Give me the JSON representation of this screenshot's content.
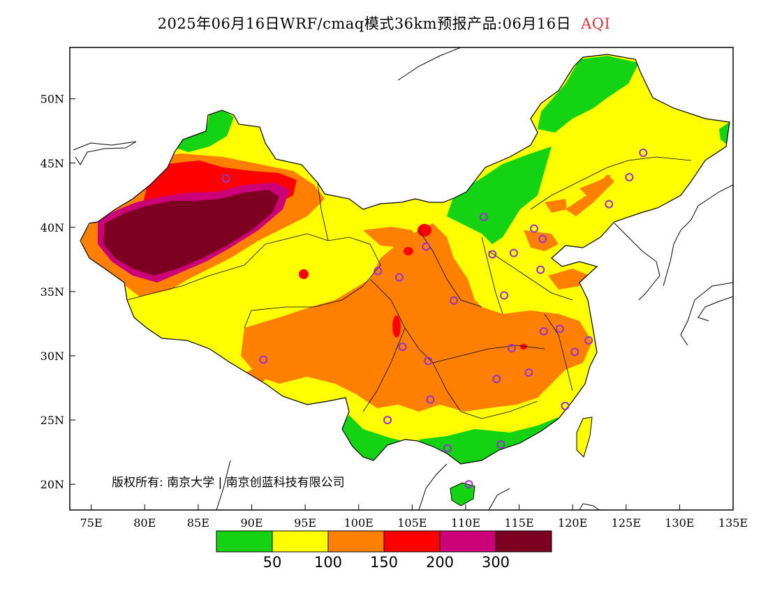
{
  "title": {
    "main": "2025年06月16日WRF/cmaq模式36km预报产品:06月16日",
    "variable": "AQI"
  },
  "map": {
    "lon_range": [
      73,
      135
    ],
    "lat_range": [
      18,
      54
    ],
    "lon_ticks": [
      "75E",
      "80E",
      "85E",
      "90E",
      "95E",
      "100E",
      "105E",
      "110E",
      "115E",
      "120E",
      "125E",
      "130E",
      "135E"
    ],
    "lat_ticks": [
      "20N",
      "25N",
      "30N",
      "35N",
      "40N",
      "45N",
      "50N"
    ],
    "copyright": "版权所有: 南京大学 | 南京创蓝科技有限公司"
  },
  "legend": {
    "colors": [
      "#13d313",
      "#ffff00",
      "#ff8000",
      "#ff0000",
      "#cc0077",
      "#7d0023"
    ],
    "labels": [
      "50",
      "100",
      "150",
      "200",
      "300"
    ]
  },
  "stations_color": "#9a30d0"
}
